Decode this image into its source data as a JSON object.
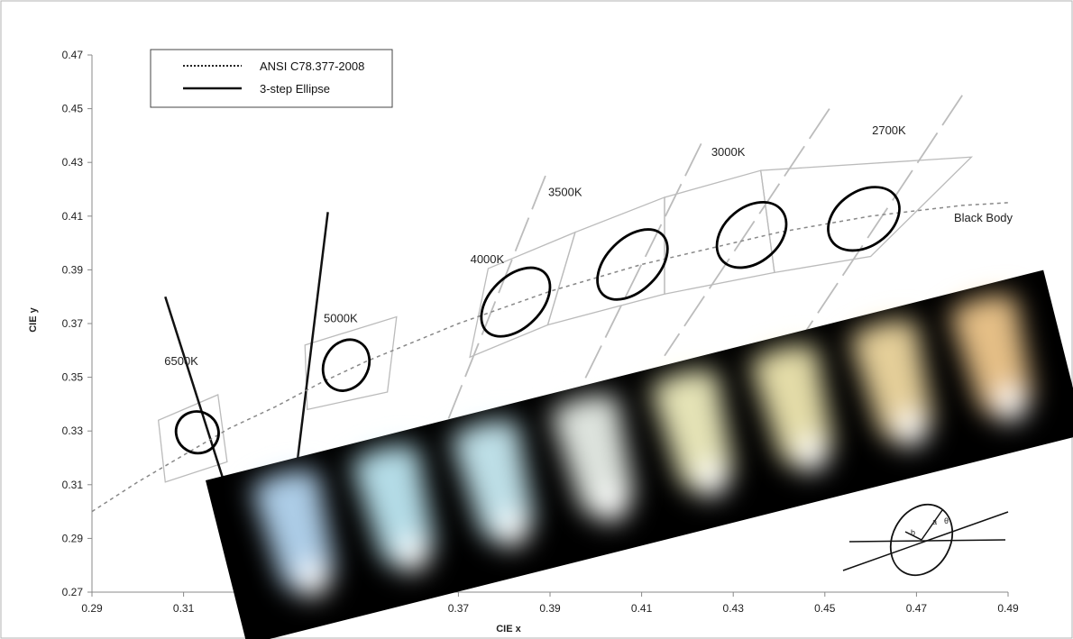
{
  "chart_data": {
    "type": "scatter",
    "title": "",
    "xlabel": "CIE x",
    "ylabel": "CIE y",
    "xlim": [
      0.29,
      0.49
    ],
    "ylim": [
      0.27,
      0.47
    ],
    "xticks": [
      "0.29",
      "0.31",
      "0.33",
      "0.35",
      "0.37",
      "0.39",
      "0.41",
      "0.43",
      "0.45",
      "0.47",
      "0.49"
    ],
    "yticks": [
      "0.27",
      "0.29",
      "0.31",
      "0.33",
      "0.35",
      "0.37",
      "0.39",
      "0.41",
      "0.43",
      "0.45",
      "0.47"
    ],
    "legend": {
      "placement": "top-left",
      "entries": [
        {
          "label": "ANSI C78.377-2008",
          "style": "dotted"
        },
        {
          "label": "3-step Ellipse",
          "style": "solid"
        }
      ]
    },
    "black_body": {
      "label": "Black Body",
      "x": [
        0.29,
        0.3,
        0.31,
        0.32,
        0.33,
        0.34,
        0.35,
        0.36,
        0.37,
        0.38,
        0.39,
        0.4,
        0.41,
        0.42,
        0.43,
        0.44,
        0.45,
        0.46,
        0.47,
        0.48,
        0.49
      ],
      "y": [
        0.3,
        0.311,
        0.321,
        0.331,
        0.339,
        0.348,
        0.356,
        0.363,
        0.37,
        0.376,
        0.382,
        0.387,
        0.392,
        0.396,
        0.4,
        0.404,
        0.407,
        0.41,
        0.412,
        0.414,
        0.415
      ]
    },
    "series": [
      {
        "name": "6500K",
        "center": [
          0.313,
          0.3295
        ],
        "ellipse": {
          "a": 0.0045,
          "b": 0.0047,
          "angle_deg": 60
        },
        "quad": [
          [
            0.306,
            0.311
          ],
          [
            0.3195,
            0.3185
          ],
          [
            0.3175,
            0.3435
          ],
          [
            0.3045,
            0.334
          ]
        ],
        "cct_line": [
          [
            0.306,
            0.38
          ],
          [
            0.3205,
            0.302
          ]
        ]
      },
      {
        "name": "5000K",
        "center": [
          0.3455,
          0.3545
        ],
        "ellipse": {
          "a": 0.0058,
          "b": 0.0048,
          "angle_deg": 60
        },
        "quad": [
          [
            0.337,
            0.338
          ],
          [
            0.3545,
            0.3445
          ],
          [
            0.3565,
            0.3725
          ],
          [
            0.3365,
            0.362
          ]
        ],
        "cct_line": [
          [
            0.3415,
            0.4115
          ],
          [
            0.3345,
            0.314
          ]
        ]
      },
      {
        "name": "4000K",
        "center": [
          0.3825,
          0.378
        ],
        "ellipse": {
          "a": 0.009,
          "b": 0.0056,
          "angle_deg": 45
        },
        "quad": [
          [
            0.3725,
            0.3575
          ],
          [
            0.3895,
            0.3695
          ],
          [
            0.3955,
            0.404
          ],
          [
            0.3765,
            0.3905
          ]
        ],
        "cct_line": [
          [
            0.389,
            0.425
          ],
          [
            0.367,
            0.331
          ]
        ]
      },
      {
        "name": "3500K",
        "center": [
          0.408,
          0.392
        ],
        "ellipse": {
          "a": 0.0092,
          "b": 0.0057,
          "angle_deg": 45
        },
        "quad": [
          [
            0.3895,
            0.3695
          ],
          [
            0.415,
            0.381
          ],
          [
            0.415,
            0.417
          ],
          [
            0.3955,
            0.404
          ]
        ],
        "cct_line": [
          [
            0.423,
            0.437
          ],
          [
            0.39,
            0.323
          ]
        ]
      },
      {
        "name": "3000K",
        "center": [
          0.434,
          0.403
        ],
        "ellipse": {
          "a": 0.0085,
          "b": 0.006,
          "angle_deg": 40
        },
        "quad": [
          [
            0.415,
            0.381
          ],
          [
            0.439,
            0.389
          ],
          [
            0.436,
            0.427
          ],
          [
            0.415,
            0.417
          ]
        ],
        "cct_line": [
          [
            0.451,
            0.45
          ],
          [
            0.415,
            0.358
          ]
        ]
      },
      {
        "name": "2700K",
        "center": [
          0.4585,
          0.409
        ],
        "ellipse": {
          "a": 0.0085,
          "b": 0.006,
          "angle_deg": 35
        },
        "quad": [
          [
            0.439,
            0.389
          ],
          [
            0.46,
            0.395
          ],
          [
            0.482,
            0.432
          ],
          [
            0.436,
            0.427
          ]
        ],
        "cct_line": [
          [
            0.48,
            0.455
          ],
          [
            0.445,
            0.365
          ]
        ]
      }
    ],
    "inset_photo": {
      "description_none": ""
    },
    "mini_diagram_labels": [
      "b",
      "a",
      "θ"
    ]
  },
  "colors": {
    "background": "#ffffff",
    "quad": "#bbbbbb",
    "cct_line": "#bcbcbc",
    "ellipse": "#000000",
    "black_body": "#888888",
    "photo_bg": "#000000"
  },
  "photo_glows": [
    {
      "color": "#bfe2ff"
    },
    {
      "color": "#c7f3ff"
    },
    {
      "color": "#d2f6ff"
    },
    {
      "color": "#f4fbf4"
    },
    {
      "color": "#fdfbc9"
    },
    {
      "color": "#fcf3b9"
    },
    {
      "color": "#fde4a8"
    },
    {
      "color": "#fdd394"
    }
  ]
}
